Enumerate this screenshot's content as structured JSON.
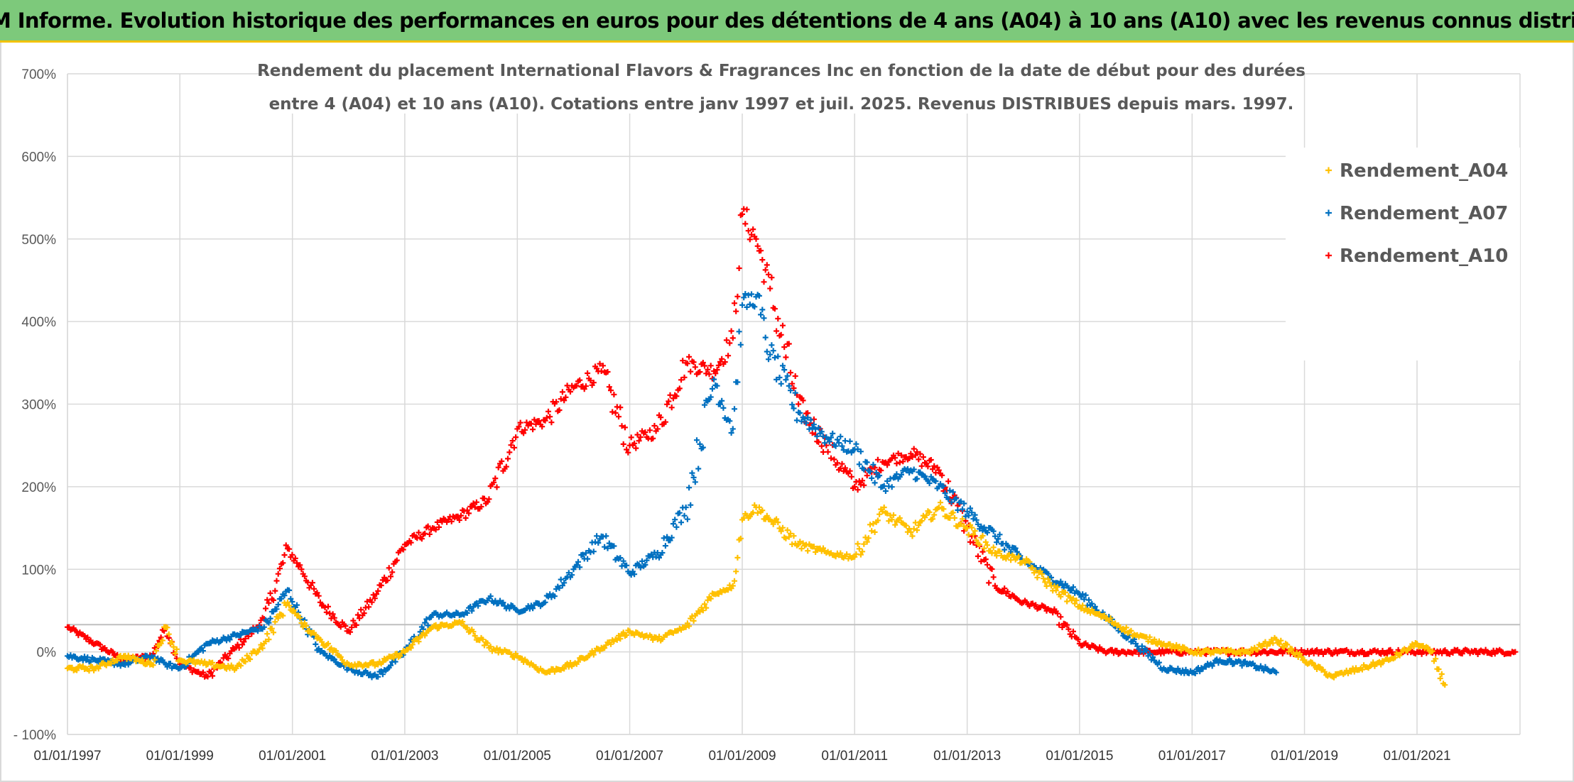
{
  "header": {
    "title": "ADAM Informe. Evolution historique des performances en euros pour des détentions de 4 ans (A04) à 10 ans (A10) avec les revenus connus distribués"
  },
  "colors": {
    "banner": "#7dc97b",
    "banner_border": "#f2c200",
    "grid": "#d9d9d9",
    "A04": "#ffc000",
    "A07": "#0070c0",
    "A10": "#ff0000"
  },
  "chart_data": {
    "type": "scatter",
    "marker": "plus",
    "title_lines": [
      "Rendement du placement International Flavors & Fragrances Inc en fonction de la date de début pour des durées",
      "entre 4 (A04) et 10 ans (A10). Cotations entre janv 1997 et juil. 2025. Revenus DISTRIBUES depuis mars. 1997."
    ],
    "xlabel": "",
    "ylabel": "",
    "x_ticks": [
      "01/01/1997",
      "01/01/1999",
      "01/01/2001",
      "01/01/2003",
      "01/01/2005",
      "01/01/2007",
      "01/01/2009",
      "01/01/2011",
      "01/01/2013",
      "01/01/2015",
      "01/01/2017",
      "01/01/2019",
      "01/01/2021"
    ],
    "y_ticks": [
      "700%",
      "600%",
      "500%",
      "400%",
      "300%",
      "200%",
      "100%",
      "0%",
      "- 100%"
    ],
    "xlim": [
      "1997-01-01",
      "2022-11-01"
    ],
    "ylim": [
      -100,
      700
    ],
    "legend": {
      "position": "top-right"
    },
    "grid": true,
    "series": [
      {
        "name": "Rendement_A04",
        "x": [
          "1997-01",
          "1997-07",
          "1998-01",
          "1998-07",
          "1998-10",
          "1999-01",
          "1999-07",
          "2000-01",
          "2000-07",
          "2000-12",
          "2001-03",
          "2001-07",
          "2002-01",
          "2002-07",
          "2003-01",
          "2003-07",
          "2004-01",
          "2004-07",
          "2005-01",
          "2005-07",
          "2006-01",
          "2006-07",
          "2007-01",
          "2007-07",
          "2008-01",
          "2008-07",
          "2008-11",
          "2009-01",
          "2009-04",
          "2009-07",
          "2010-01",
          "2010-07",
          "2011-01",
          "2011-07",
          "2012-01",
          "2012-07",
          "2013-01",
          "2013-07",
          "2014-01",
          "2014-07",
          "2015-01",
          "2015-07",
          "2016-01",
          "2016-07",
          "2017-01",
          "2017-07",
          "2018-01",
          "2018-07",
          "2019-01",
          "2019-07",
          "2020-01",
          "2020-07",
          "2021-01",
          "2021-04",
          "2021-07"
        ],
        "values": [
          -20,
          -20,
          -5,
          -15,
          30,
          -10,
          -15,
          -20,
          10,
          60,
          35,
          15,
          -15,
          -15,
          0,
          30,
          35,
          5,
          -5,
          -25,
          -15,
          5,
          25,
          15,
          30,
          70,
          80,
          160,
          175,
          160,
          130,
          120,
          115,
          170,
          145,
          175,
          150,
          120,
          110,
          80,
          55,
          40,
          20,
          10,
          0,
          0,
          0,
          15,
          -10,
          -30,
          -20,
          -10,
          10,
          0,
          -40
        ]
      },
      {
        "name": "Rendement_A07",
        "x": [
          "1997-01",
          "1997-07",
          "1998-01",
          "1998-07",
          "1998-10",
          "1999-01",
          "1999-07",
          "2000-01",
          "2000-07",
          "2000-12",
          "2001-03",
          "2001-07",
          "2002-01",
          "2002-07",
          "2003-01",
          "2003-07",
          "2004-01",
          "2004-07",
          "2005-01",
          "2005-07",
          "2006-01",
          "2006-07",
          "2007-01",
          "2007-07",
          "2008-01",
          "2008-07",
          "2008-11",
          "2009-01",
          "2009-04",
          "2009-07",
          "2010-01",
          "2010-07",
          "2011-01",
          "2011-07",
          "2012-01",
          "2012-07",
          "2013-01",
          "2013-07",
          "2014-01",
          "2014-07",
          "2015-01",
          "2015-07",
          "2016-01",
          "2016-07",
          "2017-01",
          "2017-07",
          "2018-01",
          "2018-07"
        ],
        "values": [
          -5,
          -10,
          -15,
          -5,
          -15,
          -20,
          10,
          20,
          30,
          75,
          40,
          0,
          -20,
          -30,
          0,
          45,
          45,
          65,
          50,
          60,
          100,
          140,
          95,
          120,
          175,
          330,
          270,
          420,
          430,
          360,
          290,
          260,
          245,
          200,
          220,
          200,
          170,
          140,
          110,
          90,
          70,
          40,
          10,
          -20,
          -25,
          -10,
          -15,
          -25
        ]
      },
      {
        "name": "Rendement_A10",
        "x": [
          "1997-01",
          "1997-07",
          "1998-01",
          "1998-07",
          "1998-10",
          "1999-01",
          "1999-07",
          "2000-01",
          "2000-07",
          "2000-12",
          "2001-03",
          "2001-07",
          "2002-01",
          "2002-07",
          "2003-01",
          "2003-07",
          "2004-01",
          "2004-07",
          "2005-01",
          "2005-07",
          "2006-01",
          "2006-07",
          "2007-01",
          "2007-07",
          "2008-01",
          "2008-07",
          "2008-11",
          "2009-01",
          "2009-04",
          "2009-07",
          "2010-01",
          "2010-07",
          "2011-01",
          "2011-07",
          "2012-01",
          "2012-07",
          "2013-01",
          "2013-07",
          "2014-01",
          "2014-07",
          "2015-01",
          "2015-07",
          "2016-01",
          "2017-01",
          "2018-01",
          "2019-01",
          "2020-01",
          "2021-01",
          "2022-10"
        ],
        "values": [
          30,
          10,
          -10,
          -5,
          30,
          -15,
          -30,
          5,
          40,
          125,
          100,
          60,
          25,
          70,
          130,
          150,
          165,
          185,
          270,
          280,
          320,
          340,
          250,
          270,
          350,
          340,
          380,
          530,
          500,
          440,
          300,
          250,
          200,
          230,
          240,
          220,
          150,
          80,
          60,
          50,
          10,
          0,
          0,
          0,
          0,
          0,
          0,
          0,
          0
        ]
      }
    ]
  }
}
